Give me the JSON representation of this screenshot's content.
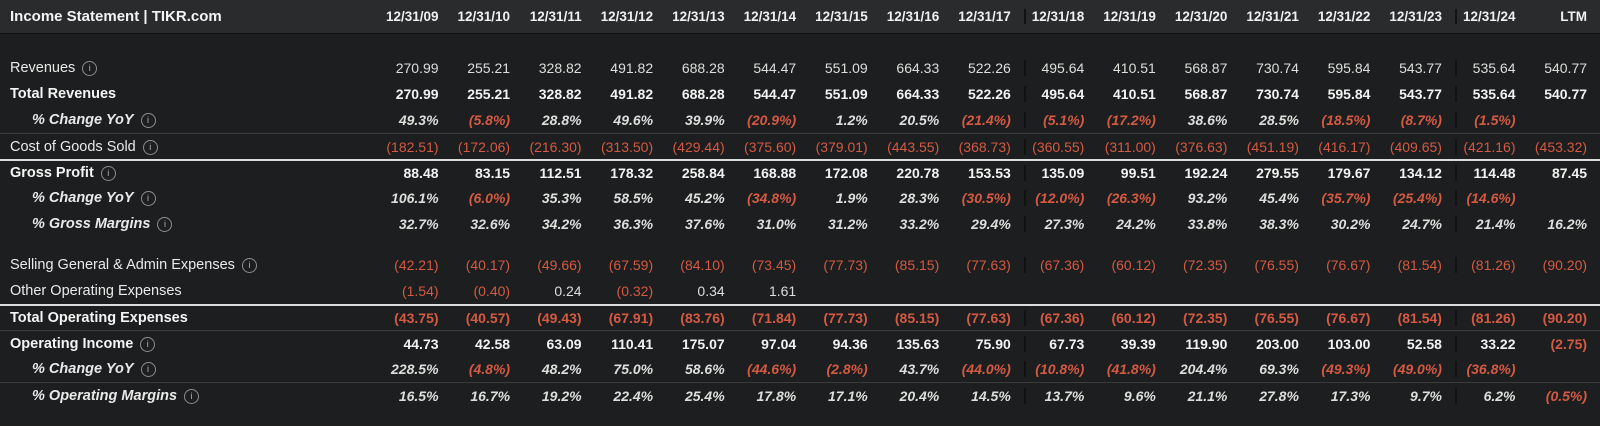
{
  "header": {
    "title": "Income Statement | TIKR.com",
    "columns": [
      "12/31/09",
      "12/31/10",
      "12/31/11",
      "12/31/12",
      "12/31/13",
      "12/31/14",
      "12/31/15",
      "12/31/16",
      "12/31/17",
      "12/31/18",
      "12/31/19",
      "12/31/20",
      "12/31/21",
      "12/31/22",
      "12/31/23",
      "12/31/24",
      "LTM"
    ]
  },
  "colors": {
    "background": "#1d1e1f",
    "header_background": "#2a2b2c",
    "text": "#e9e9e9",
    "negative": "#d45a43",
    "strong_border": "#dcdcdc"
  },
  "table": {
    "divider_cols": [
      9,
      15
    ],
    "rows": [
      {
        "name": "revenues",
        "label": "Revenues",
        "info": true,
        "bold": false,
        "italic": false,
        "indent": false,
        "border_top": null,
        "values": [
          "270.99",
          "255.21",
          "328.82",
          "491.82",
          "688.28",
          "544.47",
          "551.09",
          "664.33",
          "522.26",
          "495.64",
          "410.51",
          "568.87",
          "730.74",
          "595.84",
          "543.77",
          "535.64",
          "540.77"
        ]
      },
      {
        "name": "total-revenues",
        "label": "Total Revenues",
        "info": false,
        "bold": true,
        "italic": false,
        "indent": false,
        "border_top": null,
        "values": [
          "270.99",
          "255.21",
          "328.82",
          "491.82",
          "688.28",
          "544.47",
          "551.09",
          "664.33",
          "522.26",
          "495.64",
          "410.51",
          "568.87",
          "730.74",
          "595.84",
          "543.77",
          "535.64",
          "540.77"
        ]
      },
      {
        "name": "revenue-change-yoy",
        "label": "% Change YoY",
        "info": true,
        "bold": false,
        "italic": true,
        "indent": true,
        "border_top": null,
        "values": [
          "49.3%",
          "(5.8%)",
          "28.8%",
          "49.6%",
          "39.9%",
          "(20.9%)",
          "1.2%",
          "20.5%",
          "(21.4%)",
          "(5.1%)",
          "(17.2%)",
          "38.6%",
          "28.5%",
          "(18.5%)",
          "(8.7%)",
          "(1.5%)",
          ""
        ]
      },
      {
        "name": "cost-of-goods-sold",
        "label": "Cost of Goods Sold",
        "info": true,
        "bold": false,
        "italic": false,
        "indent": false,
        "border_top": "faint",
        "values": [
          "(182.51)",
          "(172.06)",
          "(216.30)",
          "(313.50)",
          "(429.44)",
          "(375.60)",
          "(379.01)",
          "(443.55)",
          "(368.73)",
          "(360.55)",
          "(311.00)",
          "(376.63)",
          "(451.19)",
          "(416.17)",
          "(409.65)",
          "(421.16)",
          "(453.32)"
        ]
      },
      {
        "name": "gross-profit",
        "label": "Gross Profit",
        "info": true,
        "bold": true,
        "italic": false,
        "indent": false,
        "border_top": "strong",
        "values": [
          "88.48",
          "83.15",
          "112.51",
          "178.32",
          "258.84",
          "168.88",
          "172.08",
          "220.78",
          "153.53",
          "135.09",
          "99.51",
          "192.24",
          "279.55",
          "179.67",
          "134.12",
          "114.48",
          "87.45"
        ]
      },
      {
        "name": "gross-profit-change-yoy",
        "label": "% Change YoY",
        "info": true,
        "bold": false,
        "italic": true,
        "indent": true,
        "border_top": null,
        "values": [
          "106.1%",
          "(6.0%)",
          "35.3%",
          "58.5%",
          "45.2%",
          "(34.8%)",
          "1.9%",
          "28.3%",
          "(30.5%)",
          "(12.0%)",
          "(26.3%)",
          "93.2%",
          "45.4%",
          "(35.7%)",
          "(25.4%)",
          "(14.6%)",
          ""
        ]
      },
      {
        "name": "gross-margins",
        "label": "% Gross Margins",
        "info": true,
        "bold": false,
        "italic": true,
        "indent": true,
        "border_top": null,
        "values": [
          "32.7%",
          "32.6%",
          "34.2%",
          "36.3%",
          "37.6%",
          "31.0%",
          "31.2%",
          "33.2%",
          "29.4%",
          "27.3%",
          "24.2%",
          "33.8%",
          "38.3%",
          "30.2%",
          "24.7%",
          "21.4%",
          "16.2%"
        ]
      },
      {
        "type": "spacer",
        "height": 15
      },
      {
        "name": "sga-expenses",
        "label": "Selling General & Admin Expenses",
        "info": true,
        "bold": false,
        "italic": false,
        "indent": false,
        "border_top": null,
        "values": [
          "(42.21)",
          "(40.17)",
          "(49.66)",
          "(67.59)",
          "(84.10)",
          "(73.45)",
          "(77.73)",
          "(85.15)",
          "(77.63)",
          "(67.36)",
          "(60.12)",
          "(72.35)",
          "(76.55)",
          "(76.67)",
          "(81.54)",
          "(81.26)",
          "(90.20)"
        ]
      },
      {
        "name": "other-operating-expenses",
        "label": "Other Operating Expenses",
        "info": false,
        "bold": false,
        "italic": false,
        "indent": false,
        "border_top": null,
        "values": [
          "(1.54)",
          "(0.40)",
          "0.24",
          "(0.32)",
          "0.34",
          "1.61",
          "",
          "",
          "",
          "",
          "",
          "",
          "",
          "",
          "",
          "",
          ""
        ]
      },
      {
        "name": "total-operating-expenses",
        "label": "Total Operating Expenses",
        "info": false,
        "bold": true,
        "italic": false,
        "indent": false,
        "border_top": "strong",
        "values": [
          "(43.75)",
          "(40.57)",
          "(49.43)",
          "(67.91)",
          "(83.76)",
          "(71.84)",
          "(77.73)",
          "(85.15)",
          "(77.63)",
          "(67.36)",
          "(60.12)",
          "(72.35)",
          "(76.55)",
          "(76.67)",
          "(81.54)",
          "(81.26)",
          "(90.20)"
        ]
      },
      {
        "name": "operating-income",
        "label": "Operating Income",
        "info": true,
        "bold": true,
        "italic": false,
        "indent": false,
        "border_top": "faint",
        "values": [
          "44.73",
          "42.58",
          "63.09",
          "110.41",
          "175.07",
          "97.04",
          "94.36",
          "135.63",
          "75.90",
          "67.73",
          "39.39",
          "119.90",
          "203.00",
          "103.00",
          "52.58",
          "33.22",
          "(2.75)"
        ]
      },
      {
        "name": "operating-income-change-yoy",
        "label": "% Change YoY",
        "info": true,
        "bold": false,
        "italic": true,
        "indent": true,
        "border_top": null,
        "values": [
          "228.5%",
          "(4.8%)",
          "48.2%",
          "75.0%",
          "58.6%",
          "(44.6%)",
          "(2.8%)",
          "43.7%",
          "(44.0%)",
          "(10.8%)",
          "(41.8%)",
          "204.4%",
          "69.3%",
          "(49.3%)",
          "(49.0%)",
          "(36.8%)",
          ""
        ]
      },
      {
        "name": "operating-margins",
        "label": "% Operating Margins",
        "info": true,
        "bold": false,
        "italic": true,
        "indent": true,
        "border_top": "faint",
        "values": [
          "16.5%",
          "16.7%",
          "19.2%",
          "22.4%",
          "25.4%",
          "17.8%",
          "17.1%",
          "20.4%",
          "14.5%",
          "13.7%",
          "9.6%",
          "21.1%",
          "27.8%",
          "17.3%",
          "9.7%",
          "6.2%",
          "(0.5%)"
        ]
      }
    ]
  }
}
